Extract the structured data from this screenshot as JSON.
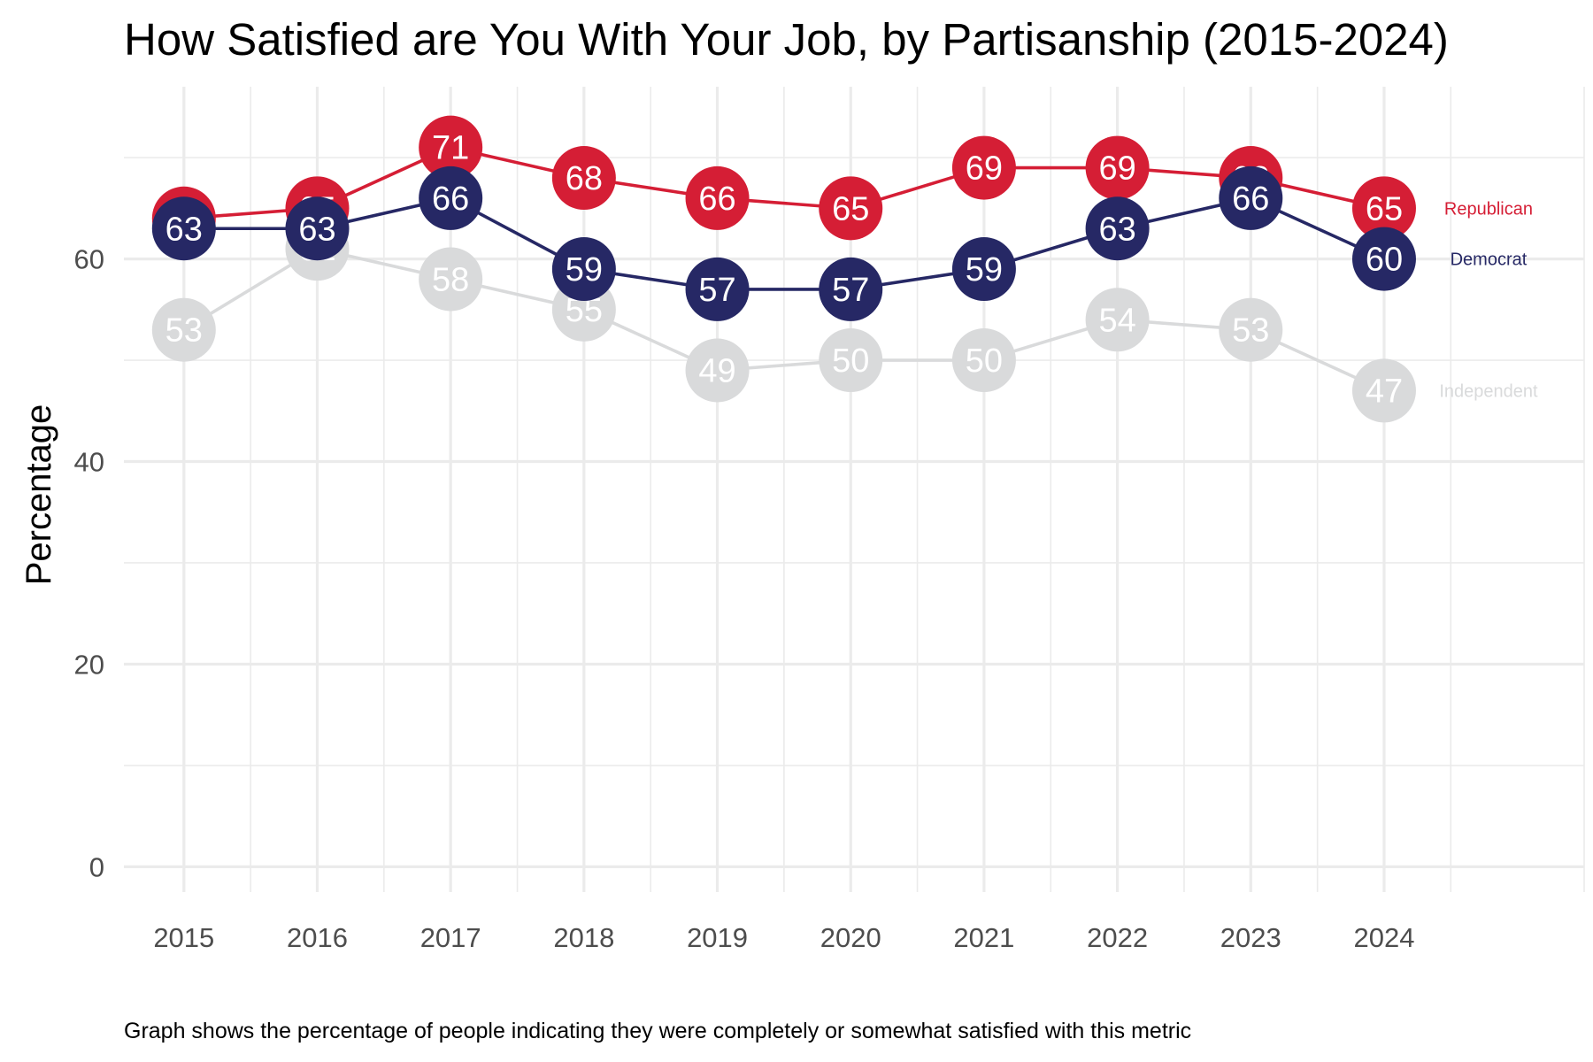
{
  "chart_data": {
    "type": "line",
    "title": "How Satisfied are You With Your Job, by Partisanship (2015-2024)",
    "ylabel": "Percentage",
    "xlabel": "",
    "caption": "Graph shows the percentage of people indicating they were completely or somewhat satisfied with this metric",
    "x": [
      2015,
      2016,
      2017,
      2018,
      2019,
      2020,
      2021,
      2022,
      2023,
      2024
    ],
    "x_tick_labels": [
      "2015",
      "2016",
      "2017",
      "2018",
      "2019",
      "2020",
      "2021",
      "2022",
      "2023",
      "2024"
    ],
    "y_tick_labels": [
      "0",
      "20",
      "40",
      "60"
    ],
    "y_ticks": [
      0,
      20,
      40,
      60
    ],
    "xlim": [
      2014.55,
      2025.5
    ],
    "ylim": [
      -2.5,
      77
    ],
    "grid": true,
    "legend": "direct labels at right end of lines",
    "series": [
      {
        "name": "Independent",
        "color": "#d9dadb",
        "values": [
          53,
          61,
          58,
          55,
          49,
          50,
          50,
          54,
          53,
          47
        ],
        "labels": [
          "53",
          "61",
          "58",
          "55",
          "49",
          "50",
          "50",
          "54",
          "53",
          "47"
        ]
      },
      {
        "name": "Republican",
        "color": "#d51e35",
        "values": [
          64,
          65,
          71,
          68,
          66,
          65,
          69,
          69,
          68,
          65
        ],
        "labels": [
          "64",
          "65",
          "71",
          "68",
          "66",
          "65",
          "69",
          "69",
          "68",
          "65"
        ]
      },
      {
        "name": "Democrat",
        "color": "#262865",
        "values": [
          63,
          63,
          66,
          59,
          57,
          57,
          59,
          63,
          66,
          60
        ],
        "labels": [
          "63",
          "63",
          "66",
          "59",
          "57",
          "57",
          "59",
          "63",
          "66",
          "60"
        ]
      }
    ]
  }
}
